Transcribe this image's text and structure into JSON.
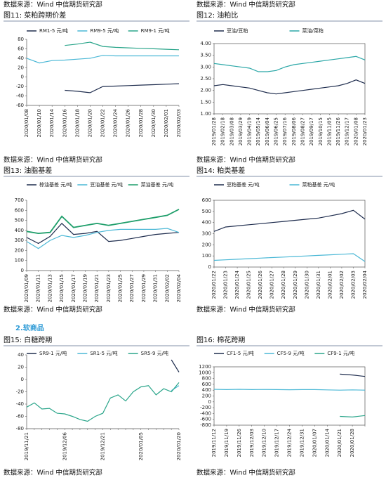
{
  "page": {
    "top_sources": [
      "数据来源：Wind 中信期货研究部",
      "数据来源：Wind 中信期货研究部"
    ],
    "section": "2.软商品"
  },
  "chart_data": [
    {
      "type": "line",
      "title": "图11: 菜粕跨期价差",
      "source": "数据来源：Wind 中信期货研究部",
      "categories": [
        "2020/01/08",
        "2020/01/10",
        "2020/01/14",
        "2020/01/16",
        "2020/01/18",
        "2020/01/20",
        "2020/01/22",
        "2020/01/24",
        "2020/01/26",
        "2020/01/28",
        "2020/01/30",
        "2020/02/01",
        "2020/02/03"
      ],
      "series": [
        {
          "name": "RM1-5 元/吨",
          "color": "#1f2d4e",
          "values": [
            null,
            null,
            null,
            -28,
            -30,
            -33,
            -20,
            -19,
            -18,
            -17,
            -16,
            -15,
            -14
          ]
        },
        {
          "name": "RM9-5 元/吨",
          "color": "#4bb8d6",
          "values": [
            40,
            30,
            35,
            36,
            38,
            40,
            46,
            45,
            45,
            45,
            45,
            45,
            45
          ]
        },
        {
          "name": "RM9-1 元/吨",
          "color": "#2aa58a",
          "values": [
            null,
            null,
            null,
            67,
            70,
            74,
            65,
            63,
            62,
            61,
            60,
            59,
            58
          ]
        }
      ],
      "ylim": [
        -60,
        80
      ],
      "yticks": [
        -60,
        -40,
        -20,
        0,
        20,
        40,
        60,
        80
      ],
      "frame": false
    },
    {
      "type": "line",
      "title": "图12: 油粕比",
      "source": "数据来源：Wind 中信期货研究部",
      "categories": [
        "2019/01/28",
        "2019/02/18",
        "2019/03/08",
        "2019/03/29",
        "2019/04/19",
        "2019/05/14",
        "2019/06/04",
        "2019/06/25",
        "2019/07/16",
        "2019/08/06",
        "2019/08/27",
        "2019/09/17",
        "2019/10/15",
        "2019/11/05",
        "2019/11/26",
        "2019/12/17",
        "2020/01/08",
        "2020/01/23"
      ],
      "series": [
        {
          "name": "豆油/豆粕",
          "color": "#1f2d4e",
          "values": [
            2.2,
            2.25,
            2.2,
            2.15,
            2.1,
            2.0,
            1.9,
            1.85,
            1.9,
            1.95,
            2.0,
            2.05,
            2.1,
            2.15,
            2.2,
            2.3,
            2.45,
            2.3
          ]
        },
        {
          "name": "菜油/菜粕",
          "color": "#2aa7a7",
          "values": [
            3.15,
            3.1,
            3.05,
            3.0,
            2.95,
            2.8,
            2.8,
            2.85,
            3.0,
            3.1,
            3.15,
            3.2,
            3.25,
            3.3,
            3.35,
            3.4,
            3.45,
            3.3
          ]
        }
      ],
      "ylim": [
        1,
        4
      ],
      "yticks": [
        {
          "value": 1,
          "label": "1.00"
        },
        {
          "value": 1.5,
          "label": "1.50"
        },
        {
          "value": 2,
          "label": "2.00"
        },
        {
          "value": 2.5,
          "label": "2.50"
        },
        {
          "value": 3,
          "label": "3.00"
        },
        {
          "value": 3.5,
          "label": "3.50"
        },
        {
          "value": 4,
          "label": "4.00"
        }
      ],
      "frame": true
    },
    {
      "type": "line",
      "title": "图13: 油脂基差",
      "source": "数据来源：Wind 中信期货研究部",
      "categories": [
        "2020/01/09",
        "2020/01/11",
        "2020/01/13",
        "2020/01/15",
        "2020/01/17",
        "2020/01/19",
        "2020/01/21",
        "2020/01/23",
        "2020/01/25",
        "2020/01/27",
        "2020/01/29",
        "2020/01/31",
        "2020/02/02",
        "2020/02/04"
      ],
      "series": [
        {
          "name": "棕油基差 元/吨",
          "color": "#1f2d4e",
          "values": [
            330,
            270,
            340,
            470,
            360,
            370,
            390,
            290,
            300,
            320,
            340,
            360,
            370,
            380
          ]
        },
        {
          "name": "豆油基差 元/吨",
          "color": "#4bb8d6",
          "values": [
            290,
            220,
            300,
            350,
            330,
            350,
            380,
            400,
            410,
            410,
            410,
            410,
            420,
            380
          ]
        },
        {
          "name": "菜油基差 元/吨",
          "color": "#1e9e6a",
          "values": [
            390,
            370,
            380,
            540,
            430,
            450,
            470,
            450,
            470,
            490,
            510,
            530,
            550,
            610
          ]
        }
      ],
      "ylim": [
        0,
        700
      ],
      "yticks": [
        0,
        100,
        200,
        300,
        400,
        500,
        600,
        700
      ],
      "frame": false
    },
    {
      "type": "line",
      "title": "图14: 粕类基差",
      "source": "数据来源：Wind 中信期货研究部",
      "categories": [
        "2020/01/22",
        "2020/01/23",
        "2020/01/24",
        "2020/01/25",
        "2020/01/26",
        "2020/01/27",
        "2020/01/28",
        "2020/01/29",
        "2020/01/30",
        "2020/01/31",
        "2020/02/01",
        "2020/02/02",
        "2020/02/03",
        "2020/02/04"
      ],
      "series": [
        {
          "name": "豆粕基差 元/吨",
          "color": "#1f2d4e",
          "values": [
            320,
            360,
            370,
            380,
            390,
            400,
            410,
            420,
            430,
            440,
            460,
            480,
            510,
            430
          ]
        },
        {
          "name": "菜粕基差 元/吨",
          "color": "#4bb8d6",
          "values": [
            60,
            65,
            70,
            75,
            80,
            85,
            90,
            95,
            100,
            105,
            110,
            115,
            120,
            50
          ]
        }
      ],
      "ylim": [
        0,
        600
      ],
      "yticks": [
        0,
        100,
        200,
        300,
        400,
        500,
        600
      ],
      "frame": true
    },
    {
      "type": "line",
      "title": "图15: 白糖跨期",
      "source": "数据来源：Wind 中信期货研究部",
      "categories": [
        "2019/11/21",
        null,
        null,
        null,
        null,
        "2019/12/06",
        null,
        null,
        null,
        null,
        "2019/12/21",
        null,
        null,
        null,
        null,
        "2020/01/05",
        null,
        null,
        null,
        null,
        "2020/01/20"
      ],
      "series": [
        {
          "name": "SR9-1 元/吨",
          "color": "#1f2d4e",
          "values": [
            null,
            null,
            null,
            null,
            null,
            null,
            null,
            null,
            null,
            null,
            null,
            null,
            null,
            null,
            null,
            null,
            null,
            null,
            null,
            32,
            12
          ]
        },
        {
          "name": "SR1-5 元/吨",
          "color": "#4bb8d6",
          "values": [
            null,
            null,
            null,
            null,
            null,
            null,
            null,
            null,
            null,
            null,
            null,
            null,
            null,
            null,
            null,
            null,
            null,
            null,
            null,
            -18,
            -10
          ]
        },
        {
          "name": "SR5-9 元/吨",
          "color": "#2aa58a",
          "values": [
            -45,
            -38,
            -48,
            -47,
            -55,
            -56,
            -60,
            -65,
            -68,
            -60,
            -55,
            -30,
            -25,
            -35,
            -20,
            -12,
            -10,
            -25,
            -15,
            -20,
            -5
          ]
        }
      ],
      "ylim": [
        -80,
        40
      ],
      "yticks": [
        -80,
        -60,
        -40,
        -20,
        0,
        20,
        40
      ],
      "frame": false
    },
    {
      "type": "line",
      "title": "图16: 棉花跨期",
      "source": "数据来源：Wind 中信期货研究部",
      "categories": [
        "2019/11/12",
        "2019/11/19",
        "2019/11/26",
        "2019/12/03",
        "2019/12/10",
        "2019/12/17",
        "2019/12/24",
        "2019/12/31",
        "2020/01/07",
        "2020/01/14",
        "2020/01/21",
        "2020/01/28",
        null
      ],
      "series": [
        {
          "name": "CF1-5 元/吨",
          "color": "#1f2d4e",
          "values": [
            null,
            null,
            null,
            null,
            null,
            null,
            null,
            null,
            null,
            null,
            950,
            920,
            870
          ]
        },
        {
          "name": "CF5-9 元/吨",
          "color": "#4bb8d6",
          "values": [
            430,
            420,
            430,
            420,
            425,
            420,
            415,
            420,
            420,
            410,
            400,
            410,
            400
          ]
        },
        {
          "name": "CF9-1 元/吨",
          "color": "#2aa58a",
          "values": [
            null,
            null,
            null,
            null,
            null,
            null,
            null,
            null,
            null,
            null,
            -500,
            -520,
            -470
          ]
        }
      ],
      "ylim": [
        -800,
        1200
      ],
      "yticks": [
        -800,
        -600,
        -400,
        -200,
        0,
        200,
        400,
        600,
        800,
        1000,
        1200
      ],
      "frame": true
    }
  ]
}
